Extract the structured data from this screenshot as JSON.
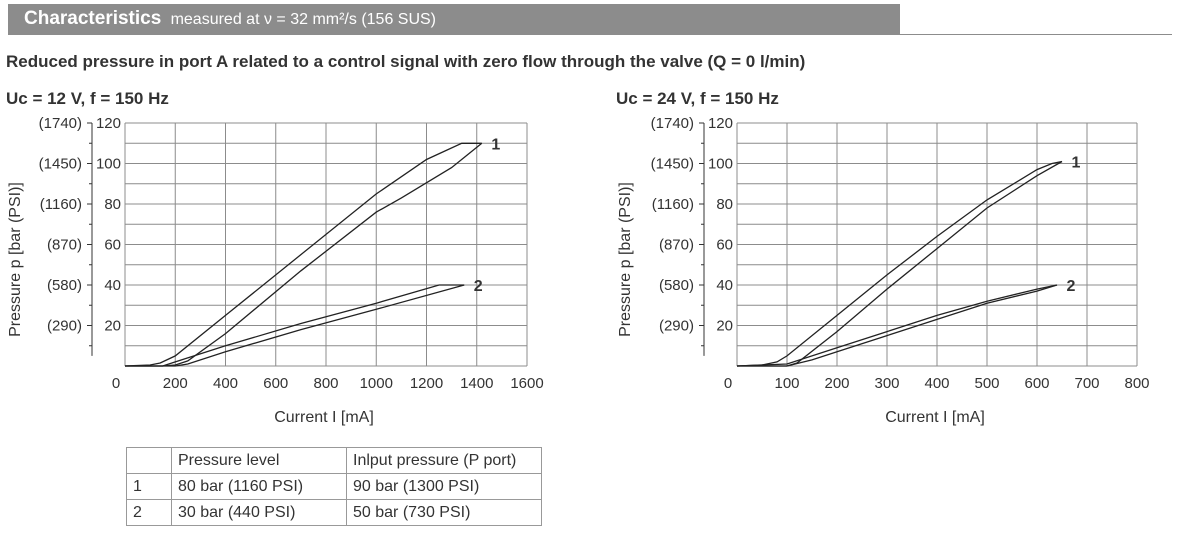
{
  "header": {
    "title": "Characteristics",
    "subtitle": "measured at ν = 32 mm²/s (156 SUS)"
  },
  "description": "Reduced pressure in port A related to a control signal with zero flow through the valve (Q = 0 l/min)",
  "legend_table": {
    "headers": [
      "",
      "Pressure level",
      "Inlput pressure (P port)"
    ],
    "rows": [
      [
        "1",
        "80 bar (1160 PSI)",
        "90 bar (1300 PSI)"
      ],
      [
        "2",
        "30 bar (440 PSI)",
        "50 bar (730 PSI)"
      ]
    ]
  },
  "colors": {
    "header_bg": "#8c8c8c",
    "grid": "#8c8c8c",
    "curve": "#222222"
  },
  "chart_data": [
    {
      "type": "line",
      "title": "Uc = 12 V, f = 150 Hz",
      "xlabel": "Current I [mA]",
      "ylabel": "Pressure p [bar (PSI)]",
      "xlim": [
        0,
        1600
      ],
      "ylim": [
        0,
        120
      ],
      "x_ticks": [
        "0",
        "200",
        "400",
        "600",
        "800",
        "1000",
        "1200",
        "1400",
        "1600"
      ],
      "y_ticks": [
        "120",
        "100",
        "80",
        "60",
        "40",
        "20"
      ],
      "y_ticks_psi": [
        "(1740)",
        "(1450)",
        "(1160)",
        "(870)",
        "(580)",
        "(290)"
      ],
      "grid": true,
      "series": [
        {
          "name": "1",
          "x": [
            0,
            100,
            140,
            200,
            400,
            700,
            1000,
            1200,
            1340,
            1420
          ],
          "y": [
            0,
            0.5,
            1.5,
            5,
            25,
            55,
            85,
            102,
            110,
            110
          ]
        },
        {
          "name": "1",
          "x": [
            0,
            150,
            200,
            250,
            400,
            700,
            1000,
            1100,
            1300,
            1420
          ],
          "y": [
            0,
            0,
            0.5,
            2.5,
            16,
            47,
            76,
            83,
            98,
            110
          ]
        },
        {
          "name": "2",
          "x": [
            0,
            150,
            200,
            400,
            700,
            1000,
            1250,
            1350
          ],
          "y": [
            0,
            0,
            2,
            10,
            21,
            31,
            40,
            40
          ]
        },
        {
          "name": "2",
          "x": [
            0,
            200,
            250,
            400,
            700,
            1000,
            1350
          ],
          "y": [
            0,
            0,
            1,
            7,
            18,
            28,
            40
          ]
        }
      ]
    },
    {
      "type": "line",
      "title": "Uc = 24 V, f = 150 Hz",
      "xlabel": "Current I [mA]",
      "ylabel": "Pressure p [bar (PSI)]",
      "xlim": [
        0,
        800
      ],
      "ylim": [
        0,
        120
      ],
      "x_ticks": [
        "0",
        "100",
        "200",
        "300",
        "400",
        "500",
        "600",
        "700",
        "800"
      ],
      "y_ticks": [
        "120",
        "100",
        "80",
        "60",
        "40",
        "20"
      ],
      "y_ticks_psi": [
        "(1740)",
        "(1450)",
        "(1160)",
        "(870)",
        "(580)",
        "(290)"
      ],
      "grid": true,
      "series": [
        {
          "name": "1",
          "x": [
            0,
            50,
            80,
            100,
            200,
            300,
            400,
            500,
            600,
            630,
            650
          ],
          "y": [
            0,
            0.5,
            2,
            5,
            25,
            45,
            64,
            82,
            97,
            100,
            101
          ]
        },
        {
          "name": "1",
          "x": [
            0,
            100,
            120,
            200,
            300,
            400,
            500,
            600,
            650
          ],
          "y": [
            0,
            0,
            1.5,
            17,
            38,
            58,
            78,
            94,
            101
          ]
        },
        {
          "name": "2",
          "x": [
            0,
            100,
            200,
            300,
            400,
            500,
            600,
            640
          ],
          "y": [
            0,
            1,
            9,
            17,
            25,
            32,
            38,
            40
          ]
        },
        {
          "name": "2",
          "x": [
            0,
            100,
            150,
            200,
            300,
            400,
            500,
            600,
            640
          ],
          "y": [
            0,
            0,
            3,
            7,
            15,
            23,
            31,
            37,
            40
          ]
        }
      ],
      "curve_labels": [
        {
          "text": "1",
          "x": 665,
          "y": 105
        },
        {
          "text": "2",
          "x": 655,
          "y": 45
        }
      ]
    }
  ]
}
